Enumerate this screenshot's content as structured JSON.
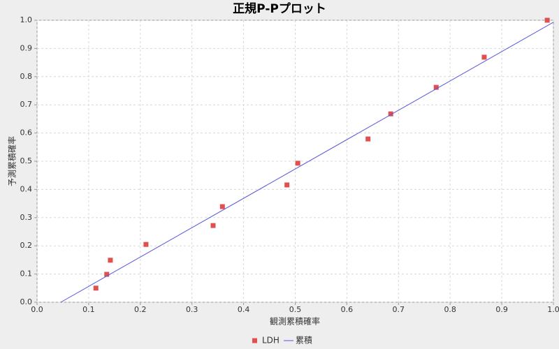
{
  "chart_data": {
    "type": "scatter",
    "title": "正規P-Pプロット",
    "x_label": "観測累積確率",
    "y_label": "予測累積確率",
    "xlim": [
      0,
      1
    ],
    "ylim": [
      0,
      1
    ],
    "xticks": [
      {
        "value": 0,
        "label": "0.0"
      },
      0.1,
      0.2,
      0.3,
      0.4,
      0.5,
      0.6,
      0.7,
      0.8,
      0.9,
      {
        "value": 1,
        "label": "1.0"
      }
    ],
    "yticks": [
      {
        "value": 0,
        "label": "0.0"
      },
      0.1,
      0.2,
      0.3,
      0.4,
      0.5,
      0.6,
      0.7,
      0.8,
      0.9,
      {
        "value": 1,
        "label": "1.0"
      }
    ],
    "grid": true,
    "legend": "bottom",
    "series": [
      {
        "name": "LDH",
        "color": "#e05050",
        "style": "markers",
        "x": [
          0.114,
          0.135,
          0.142,
          0.211,
          0.341,
          0.359,
          0.484,
          0.505,
          0.641,
          0.685,
          0.773,
          0.866,
          0.988
        ],
        "values": [
          0.05,
          0.099,
          0.149,
          0.205,
          0.272,
          0.339,
          0.416,
          0.493,
          0.579,
          0.668,
          0.762,
          0.869,
          1.0
        ]
      },
      {
        "name": "累積",
        "color": "#5555dd",
        "style": "line",
        "x": [
          0.046,
          1.0
        ],
        "values": [
          0,
          0.993
        ]
      }
    ]
  }
}
